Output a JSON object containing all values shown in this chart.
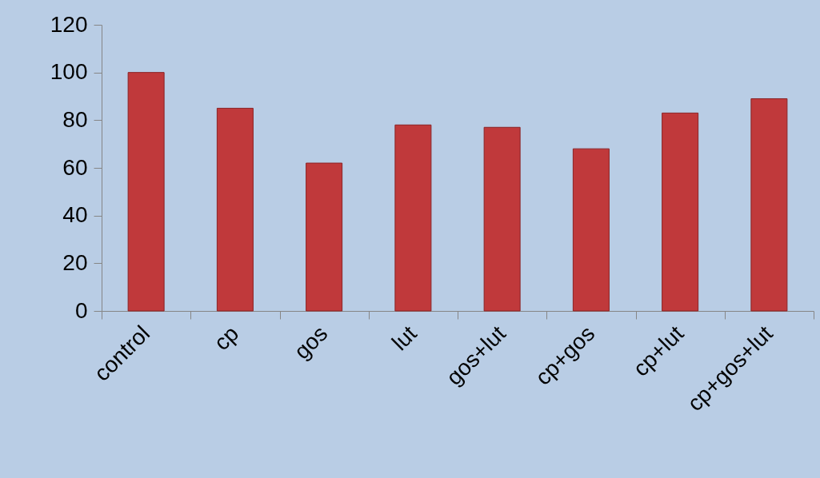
{
  "chart_data": {
    "type": "bar",
    "categories": [
      "control",
      "cp",
      "gos",
      "lut",
      "gos+lut",
      "cp+gos",
      "cp+lut",
      "cp+gos+lut"
    ],
    "values": [
      100,
      85,
      62,
      78,
      77,
      68,
      83,
      89
    ],
    "color": "#c0393b",
    "ylim": [
      0,
      120
    ],
    "yticks": [
      0,
      20,
      40,
      60,
      80,
      100,
      120
    ],
    "grid": false
  }
}
